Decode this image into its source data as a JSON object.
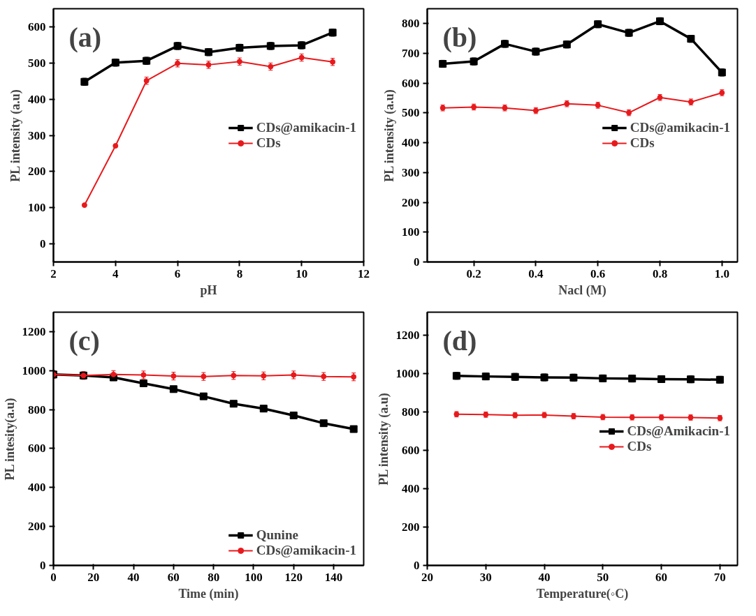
{
  "chart_data": [
    {
      "type": "line",
      "annotations": [
        "(a)"
      ],
      "xlabel": "pH",
      "ylabel": "PL intensity (a.u)",
      "x": [
        3,
        4,
        5,
        6,
        7,
        8,
        9,
        10,
        11
      ],
      "xlim": [
        2,
        12
      ],
      "xticks": [
        2,
        4,
        6,
        8,
        10,
        12
      ],
      "ylim": [
        -50,
        650
      ],
      "yticks": [
        0,
        100,
        200,
        300,
        400,
        500,
        600
      ],
      "grid": false,
      "legend": "right",
      "line_style": "solid",
      "series": [
        {
          "name": "CDs@amikacin-1",
          "color": "#000000",
          "marker": "square",
          "values": [
            448,
            501,
            506,
            547,
            530,
            542,
            547,
            549,
            584
          ],
          "errors": [
            10,
            10,
            10,
            10,
            10,
            10,
            10,
            10,
            10
          ]
        },
        {
          "name": "CDs",
          "color": "#e8191c",
          "marker": "circle",
          "values": [
            107,
            271,
            451,
            499,
            495,
            504,
            490,
            515,
            503
          ],
          "errors": [
            null,
            null,
            10,
            10,
            10,
            10,
            10,
            10,
            10
          ]
        }
      ]
    },
    {
      "type": "line",
      "annotations": [
        "(b)"
      ],
      "xlabel": "Nacl (M)",
      "ylabel": "PL intensity (a.u)",
      "x": [
        0.1,
        0.2,
        0.3,
        0.4,
        0.5,
        0.6,
        0.7,
        0.8,
        0.9,
        1.0
      ],
      "xlim": [
        0.05,
        1.05
      ],
      "xticks": [
        0.2,
        0.4,
        0.6,
        0.8,
        {
          "value": 1.0,
          "label": "1.0"
        }
      ],
      "ylim": [
        0,
        850
      ],
      "yticks": [
        0,
        100,
        200,
        300,
        400,
        500,
        600,
        700,
        800
      ],
      "grid": false,
      "legend": "right",
      "line_style": "solid",
      "series": [
        {
          "name": "CDs@amikacin-1",
          "color": "#000000",
          "marker": "square",
          "values": [
            665,
            673,
            732,
            706,
            730,
            798,
            769,
            808,
            749,
            636
          ],
          "errors": [
            12,
            12,
            12,
            12,
            12,
            12,
            12,
            12,
            12,
            12
          ]
        },
        {
          "name": "CDs",
          "color": "#e8191c",
          "marker": "circle",
          "values": [
            517,
            520,
            517,
            508,
            531,
            526,
            501,
            552,
            537,
            568
          ],
          "errors": [
            10,
            10,
            10,
            10,
            10,
            10,
            10,
            10,
            10,
            10
          ]
        }
      ]
    },
    {
      "type": "line",
      "annotations": [
        "(c)"
      ],
      "xlabel": "Time (min)",
      "ylabel": "PL intesity(a.u)",
      "x": [
        0,
        15,
        30,
        45,
        60,
        75,
        90,
        105,
        120,
        135,
        150
      ],
      "xlim": [
        0,
        155
      ],
      "xticks": [
        0,
        20,
        40,
        60,
        80,
        100,
        120,
        140
      ],
      "ylim": [
        0,
        1300
      ],
      "yticks": [
        0,
        200,
        400,
        600,
        800,
        1000,
        1200
      ],
      "grid": false,
      "legend": "bottom right",
      "line_style": "solid",
      "series": [
        {
          "name": "Qunine",
          "color": "#000000",
          "marker": "square",
          "values": [
            980,
            975,
            965,
            935,
            905,
            868,
            830,
            805,
            770,
            730,
            700
          ],
          "errors": [
            15,
            15,
            15,
            15,
            15,
            15,
            15,
            15,
            15,
            15,
            15
          ]
        },
        {
          "name": "CDs@amikacin-1",
          "color": "#e8191c",
          "marker": "circle",
          "values": [
            980,
            975,
            980,
            978,
            972,
            970,
            975,
            973,
            978,
            970,
            968
          ],
          "errors": [
            20,
            20,
            20,
            20,
            20,
            20,
            20,
            20,
            20,
            20,
            20
          ]
        }
      ]
    },
    {
      "type": "line",
      "annotations": [
        "(d)"
      ],
      "xlabel": "Temperature(◦C)",
      "ylabel": "PL intensity (a.u)",
      "x": [
        25,
        30,
        35,
        40,
        45,
        50,
        55,
        60,
        65,
        70
      ],
      "xlim": [
        20,
        73
      ],
      "xticks": [
        20,
        30,
        40,
        50,
        60,
        70
      ],
      "ylim": [
        0,
        1320
      ],
      "yticks": [
        0,
        200,
        400,
        600,
        800,
        1000,
        1200
      ],
      "grid": false,
      "legend": "right",
      "line_style": "solid",
      "series": [
        {
          "name": "CDs@Amikacin-1",
          "color": "#000000",
          "marker": "square",
          "values": [
            988,
            985,
            983,
            980,
            979,
            975,
            974,
            971,
            970,
            968
          ],
          "errors": [
            18,
            18,
            18,
            18,
            18,
            18,
            18,
            18,
            18,
            18
          ]
        },
        {
          "name": "CDs",
          "color": "#e8191c",
          "marker": "circle",
          "values": [
            788,
            786,
            783,
            784,
            778,
            773,
            772,
            772,
            771,
            768
          ],
          "errors": [
            14,
            14,
            14,
            14,
            14,
            14,
            14,
            14,
            14,
            14
          ]
        }
      ]
    }
  ]
}
